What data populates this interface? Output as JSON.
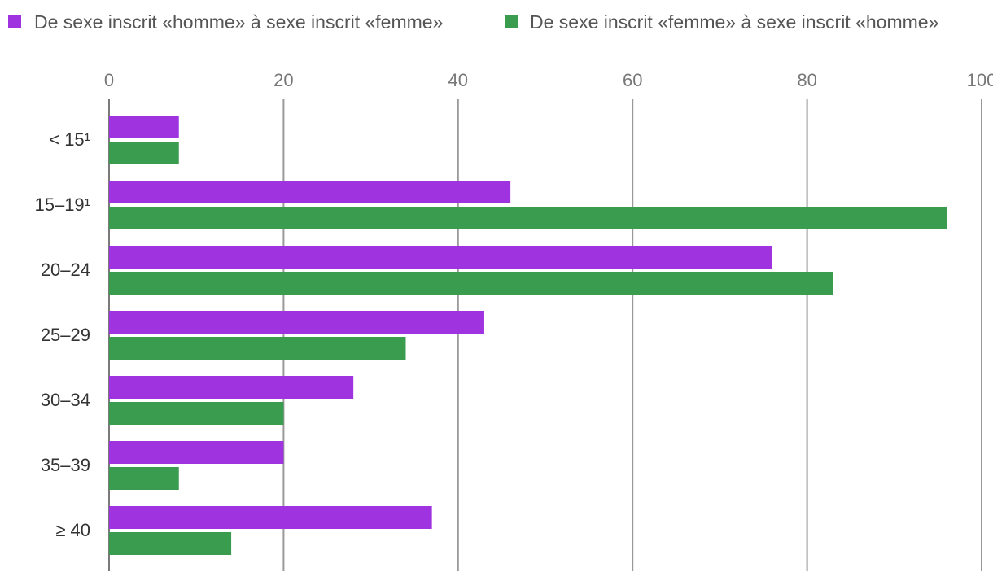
{
  "chart_data": {
    "type": "bar",
    "orientation": "horizontal",
    "categories": [
      "< 15¹",
      "15–19¹",
      "20–24",
      "25–29",
      "30–34",
      "35–39",
      "≥ 40"
    ],
    "series": [
      {
        "name": "De sexe inscrit «homme» à sexe inscrit «femme»",
        "color": "#a033e0",
        "values": [
          8,
          46,
          76,
          43,
          28,
          20,
          37
        ]
      },
      {
        "name": "De sexe inscrit «femme» à sexe inscrit «homme»",
        "color": "#399c4f",
        "values": [
          8,
          96,
          83,
          34,
          20,
          8,
          14
        ]
      }
    ],
    "xlim": [
      0,
      100
    ],
    "xticks": [
      "0",
      "20",
      "40",
      "60",
      "80",
      "100"
    ],
    "grid": true,
    "legend_position": "top",
    "xaxis_position": "top"
  }
}
